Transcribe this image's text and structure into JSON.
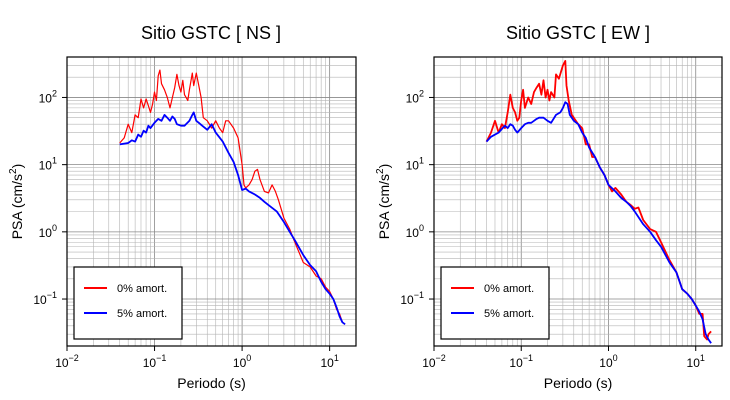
{
  "chart_data": [
    {
      "type": "line",
      "title": "Sitio GSTC [ NS ]",
      "xlabel": "Periodo (s)",
      "ylabel_main": "PSA (cm/s",
      "ylabel_sup": "2",
      "ylabel_end": ")",
      "xscale": "log",
      "yscale": "log",
      "xlim": [
        0.01,
        20
      ],
      "ylim": [
        0.02,
        400
      ],
      "grid": true,
      "legend_position": "bottom-left",
      "x_ticks": [
        {
          "base": "10",
          "exp": "−2",
          "value": 0.01
        },
        {
          "base": "10",
          "exp": "−1",
          "value": 0.1
        },
        {
          "base": "10",
          "exp": "0",
          "value": 1
        },
        {
          "base": "10",
          "exp": "1",
          "value": 10
        }
      ],
      "y_ticks": [
        {
          "base": "10",
          "exp": "−1",
          "value": 0.1
        },
        {
          "base": "10",
          "exp": "0",
          "value": 1
        },
        {
          "base": "10",
          "exp": "1",
          "value": 10
        },
        {
          "base": "10",
          "exp": "2",
          "value": 100
        }
      ],
      "series": [
        {
          "name": "0% amort.",
          "color": "#ff0000",
          "points": [
            [
              0.04,
              21
            ],
            [
              0.045,
              25
            ],
            [
              0.05,
              40
            ],
            [
              0.055,
              30
            ],
            [
              0.06,
              55
            ],
            [
              0.065,
              50
            ],
            [
              0.07,
              95
            ],
            [
              0.075,
              70
            ],
            [
              0.08,
              95
            ],
            [
              0.085,
              75
            ],
            [
              0.09,
              60
            ],
            [
              0.095,
              80
            ],
            [
              0.1,
              120
            ],
            [
              0.105,
              90
            ],
            [
              0.11,
              210
            ],
            [
              0.115,
              255
            ],
            [
              0.12,
              160
            ],
            [
              0.13,
              130
            ],
            [
              0.14,
              100
            ],
            [
              0.15,
              70
            ],
            [
              0.16,
              100
            ],
            [
              0.17,
              140
            ],
            [
              0.18,
              220
            ],
            [
              0.19,
              150
            ],
            [
              0.2,
              120
            ],
            [
              0.21,
              180
            ],
            [
              0.22,
              110
            ],
            [
              0.24,
              90
            ],
            [
              0.25,
              130
            ],
            [
              0.27,
              230
            ],
            [
              0.28,
              150
            ],
            [
              0.3,
              230
            ],
            [
              0.32,
              150
            ],
            [
              0.34,
              100
            ],
            [
              0.36,
              50
            ],
            [
              0.4,
              45
            ],
            [
              0.45,
              35
            ],
            [
              0.5,
              45
            ],
            [
              0.55,
              35
            ],
            [
              0.6,
              30
            ],
            [
              0.65,
              45
            ],
            [
              0.7,
              45
            ],
            [
              0.8,
              35
            ],
            [
              0.9,
              25
            ],
            [
              1.0,
              10
            ],
            [
              1.05,
              5
            ],
            [
              1.1,
              4.5
            ],
            [
              1.2,
              5
            ],
            [
              1.3,
              6
            ],
            [
              1.4,
              8
            ],
            [
              1.5,
              8.5
            ],
            [
              1.6,
              6
            ],
            [
              1.8,
              4
            ],
            [
              2.0,
              3.8
            ],
            [
              2.2,
              5
            ],
            [
              2.4,
              4
            ],
            [
              2.6,
              3
            ],
            [
              3.0,
              1.6
            ],
            [
              3.5,
              1.1
            ],
            [
              4.0,
              0.7
            ],
            [
              5.0,
              0.35
            ],
            [
              6.0,
              0.3
            ],
            [
              7.0,
              0.22
            ],
            [
              8.0,
              0.2
            ],
            [
              9.0,
              0.15
            ],
            [
              10.0,
              0.13
            ],
            [
              11.0,
              0.1
            ],
            [
              12.0,
              0.07
            ],
            [
              13.0,
              0.06
            ],
            [
              14.0,
              0.045
            ],
            [
              15.0,
              0.042
            ]
          ]
        },
        {
          "name": "5% amort.",
          "color": "#0000ff",
          "points": [
            [
              0.04,
              20
            ],
            [
              0.05,
              21
            ],
            [
              0.055,
              23
            ],
            [
              0.06,
              22
            ],
            [
              0.065,
              28
            ],
            [
              0.07,
              26
            ],
            [
              0.075,
              32
            ],
            [
              0.08,
              30
            ],
            [
              0.085,
              38
            ],
            [
              0.09,
              35
            ],
            [
              0.1,
              42
            ],
            [
              0.11,
              48
            ],
            [
              0.12,
              45
            ],
            [
              0.13,
              55
            ],
            [
              0.14,
              50
            ],
            [
              0.15,
              45
            ],
            [
              0.16,
              52
            ],
            [
              0.17,
              48
            ],
            [
              0.18,
              40
            ],
            [
              0.2,
              38
            ],
            [
              0.22,
              38
            ],
            [
              0.25,
              45
            ],
            [
              0.27,
              55
            ],
            [
              0.28,
              60
            ],
            [
              0.3,
              45
            ],
            [
              0.32,
              42
            ],
            [
              0.35,
              38
            ],
            [
              0.4,
              33
            ],
            [
              0.45,
              40
            ],
            [
              0.5,
              30
            ],
            [
              0.6,
              22
            ],
            [
              0.7,
              15
            ],
            [
              0.8,
              11
            ],
            [
              0.9,
              7
            ],
            [
              1.0,
              4.2
            ],
            [
              1.1,
              4.4
            ],
            [
              1.2,
              4.0
            ],
            [
              1.4,
              3.6
            ],
            [
              1.6,
              3.2
            ],
            [
              1.8,
              2.8
            ],
            [
              2.0,
              2.5
            ],
            [
              2.5,
              2.0
            ],
            [
              3.0,
              1.4
            ],
            [
              3.5,
              1.0
            ],
            [
              4.0,
              0.75
            ],
            [
              5.0,
              0.45
            ],
            [
              6.0,
              0.32
            ],
            [
              7.0,
              0.26
            ],
            [
              8.0,
              0.18
            ],
            [
              9.0,
              0.14
            ],
            [
              10.0,
              0.12
            ],
            [
              11.0,
              0.1
            ],
            [
              12.0,
              0.075
            ],
            [
              13.0,
              0.055
            ],
            [
              14.0,
              0.045
            ],
            [
              15.0,
              0.042
            ]
          ]
        }
      ]
    },
    {
      "type": "line",
      "title": "Sitio GSTC [ EW ]",
      "xlabel": "Periodo (s)",
      "ylabel_main": "PSA (cm/s",
      "ylabel_sup": "2",
      "ylabel_end": ")",
      "xscale": "log",
      "yscale": "log",
      "xlim": [
        0.01,
        20
      ],
      "ylim": [
        0.02,
        400
      ],
      "grid": true,
      "legend_position": "bottom-left",
      "x_ticks": [
        {
          "base": "10",
          "exp": "−2",
          "value": 0.01
        },
        {
          "base": "10",
          "exp": "−1",
          "value": 0.1
        },
        {
          "base": "10",
          "exp": "0",
          "value": 1
        },
        {
          "base": "10",
          "exp": "1",
          "value": 10
        }
      ],
      "y_ticks": [
        {
          "base": "10",
          "exp": "−1",
          "value": 0.1
        },
        {
          "base": "10",
          "exp": "0",
          "value": 1
        },
        {
          "base": "10",
          "exp": "1",
          "value": 10
        },
        {
          "base": "10",
          "exp": "2",
          "value": 100
        }
      ],
      "series": [
        {
          "name": "0% amort.",
          "color": "#ff0000",
          "points": [
            [
              0.04,
              22
            ],
            [
              0.045,
              30
            ],
            [
              0.05,
              45
            ],
            [
              0.055,
              30
            ],
            [
              0.06,
              40
            ],
            [
              0.065,
              35
            ],
            [
              0.07,
              60
            ],
            [
              0.075,
              110
            ],
            [
              0.08,
              70
            ],
            [
              0.085,
              60
            ],
            [
              0.09,
              45
            ],
            [
              0.095,
              50
            ],
            [
              0.1,
              90
            ],
            [
              0.105,
              130
            ],
            [
              0.11,
              70
            ],
            [
              0.12,
              100
            ],
            [
              0.13,
              80
            ],
            [
              0.14,
              120
            ],
            [
              0.15,
              140
            ],
            [
              0.16,
              160
            ],
            [
              0.17,
              110
            ],
            [
              0.18,
              180
            ],
            [
              0.19,
              100
            ],
            [
              0.2,
              130
            ],
            [
              0.21,
              90
            ],
            [
              0.22,
              120
            ],
            [
              0.24,
              100
            ],
            [
              0.25,
              220
            ],
            [
              0.27,
              190
            ],
            [
              0.3,
              300
            ],
            [
              0.32,
              350
            ],
            [
              0.33,
              150
            ],
            [
              0.35,
              90
            ],
            [
              0.38,
              55
            ],
            [
              0.4,
              50
            ],
            [
              0.45,
              40
            ],
            [
              0.5,
              35
            ],
            [
              0.55,
              20
            ],
            [
              0.6,
              20
            ],
            [
              0.65,
              13
            ],
            [
              0.7,
              13
            ],
            [
              0.8,
              9
            ],
            [
              0.9,
              7
            ],
            [
              1.0,
              5.0
            ],
            [
              1.1,
              4.0
            ],
            [
              1.2,
              4.5
            ],
            [
              1.4,
              3.6
            ],
            [
              1.6,
              2.8
            ],
            [
              1.8,
              2.5
            ],
            [
              2.0,
              2.2
            ],
            [
              2.2,
              2.3
            ],
            [
              2.5,
              1.5
            ],
            [
              3.0,
              1.1
            ],
            [
              3.5,
              1.0
            ],
            [
              4.0,
              0.7
            ],
            [
              5.0,
              0.38
            ],
            [
              6.0,
              0.25
            ],
            [
              7.0,
              0.14
            ],
            [
              8.0,
              0.12
            ],
            [
              9.0,
              0.1
            ],
            [
              10.0,
              0.08
            ],
            [
              11.0,
              0.06
            ],
            [
              12.0,
              0.06
            ],
            [
              12.5,
              0.028
            ],
            [
              13.5,
              0.025
            ],
            [
              14.0,
              0.03
            ],
            [
              15.0,
              0.033
            ]
          ]
        },
        {
          "name": "5% amort.",
          "color": "#0000ff",
          "points": [
            [
              0.04,
              22
            ],
            [
              0.045,
              26
            ],
            [
              0.05,
              28
            ],
            [
              0.055,
              30
            ],
            [
              0.06,
              34
            ],
            [
              0.065,
              38
            ],
            [
              0.07,
              35
            ],
            [
              0.075,
              40
            ],
            [
              0.08,
              38
            ],
            [
              0.085,
              33
            ],
            [
              0.09,
              30
            ],
            [
              0.1,
              35
            ],
            [
              0.11,
              40
            ],
            [
              0.12,
              42
            ],
            [
              0.13,
              42
            ],
            [
              0.14,
              45
            ],
            [
              0.15,
              48
            ],
            [
              0.16,
              50
            ],
            [
              0.18,
              50
            ],
            [
              0.2,
              45
            ],
            [
              0.22,
              42
            ],
            [
              0.25,
              55
            ],
            [
              0.28,
              60
            ],
            [
              0.3,
              70
            ],
            [
              0.32,
              85
            ],
            [
              0.34,
              80
            ],
            [
              0.36,
              55
            ],
            [
              0.4,
              45
            ],
            [
              0.45,
              40
            ],
            [
              0.5,
              30
            ],
            [
              0.55,
              25
            ],
            [
              0.6,
              18
            ],
            [
              0.7,
              13
            ],
            [
              0.8,
              9
            ],
            [
              0.9,
              7
            ],
            [
              1.0,
              5.0
            ],
            [
              1.2,
              4.0
            ],
            [
              1.4,
              3.2
            ],
            [
              1.6,
              2.8
            ],
            [
              1.8,
              2.4
            ],
            [
              2.0,
              2.0
            ],
            [
              2.5,
              1.3
            ],
            [
              3.0,
              1.0
            ],
            [
              3.5,
              0.75
            ],
            [
              4.0,
              0.6
            ],
            [
              5.0,
              0.35
            ],
            [
              6.0,
              0.25
            ],
            [
              7.0,
              0.14
            ],
            [
              8.0,
              0.12
            ],
            [
              9.0,
              0.1
            ],
            [
              10.0,
              0.08
            ],
            [
              11.0,
              0.065
            ],
            [
              12.0,
              0.05
            ],
            [
              13.0,
              0.03
            ],
            [
              14.0,
              0.025
            ],
            [
              15.0,
              0.022
            ]
          ]
        }
      ]
    }
  ]
}
